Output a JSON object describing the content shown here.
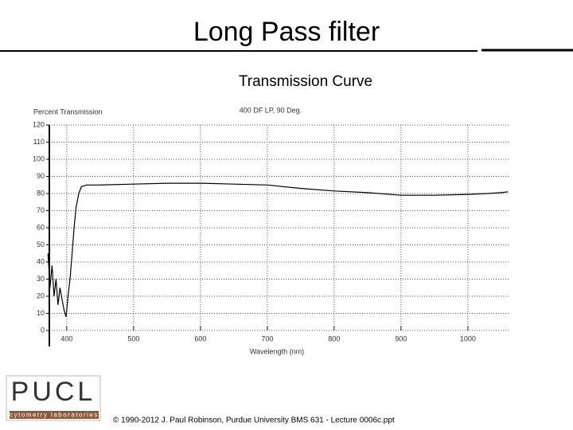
{
  "slide": {
    "title": "Long Pass filter",
    "subtitle": "Transmission Curve",
    "logo": "PUCL",
    "logo_tagline": "cytometry laboratories",
    "footer": "© 1990-2012 J. Paul Robinson, Purdue University BMS 631 - Lecture 0006c.ppt"
  },
  "chart_data": {
    "type": "line",
    "title": "400 DF LP, 90 Deg.",
    "y_label": "Percent Transmission",
    "x_label": "Wavelength (nm)",
    "x": [
      372,
      375,
      378,
      381,
      384,
      387,
      390,
      393,
      396,
      399,
      402,
      405,
      408,
      411,
      414,
      418,
      422,
      430,
      450,
      500,
      550,
      600,
      650,
      700,
      750,
      800,
      850,
      900,
      950,
      1000,
      1030,
      1050,
      1060
    ],
    "values": [
      45,
      25,
      38,
      20,
      30,
      15,
      25,
      18,
      12,
      8,
      20,
      30,
      45,
      60,
      72,
      80,
      84,
      85,
      85,
      85.5,
      86,
      86,
      85.5,
      85,
      83,
      81.5,
      80.5,
      79,
      79,
      79.5,
      80,
      80.5,
      81
    ],
    "color": "#000000",
    "xlim": [
      374,
      1062
    ],
    "ylim": [
      0,
      120
    ],
    "xticks": [
      400,
      500,
      600,
      700,
      800,
      900,
      1000
    ],
    "yticks": [
      0,
      10,
      20,
      30,
      40,
      50,
      60,
      70,
      80,
      90,
      100,
      110,
      120
    ],
    "grid": true
  }
}
